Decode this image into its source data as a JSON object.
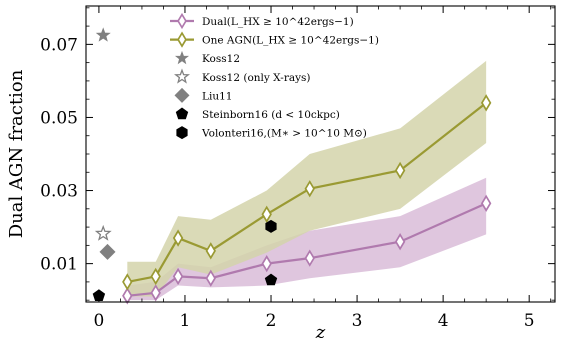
{
  "chart_data": {
    "type": "line",
    "xlabel": "z",
    "ylabel": "Dual AGN fraction",
    "xlim": [
      -0.15,
      5.3
    ],
    "ylim": [
      -0.0005,
      0.0805
    ],
    "xticks": [
      0,
      1,
      2,
      3,
      4,
      5
    ],
    "xtick_labels": [
      "0",
      "1",
      "2",
      "3",
      "4",
      "5"
    ],
    "yticks": [
      0.01,
      0.03,
      0.05,
      0.07
    ],
    "ytick_labels": [
      "0.01",
      "0.03",
      "0.05",
      "0.07"
    ],
    "legend_position": "top-center",
    "series": [
      {
        "name": "Dual(L_HX ≥ 10^42 ergs^-1)",
        "legend_label": "Dual(L_HX ≥ 10^42ergs−1)",
        "kind": "line-band",
        "color": "#b07aae",
        "band_color": "#d9bcd8",
        "x": [
          0.33,
          0.66,
          0.92,
          1.3,
          1.95,
          2.45,
          3.5,
          4.5
        ],
        "y": [
          0.0012,
          0.002,
          0.0065,
          0.006,
          0.01,
          0.0115,
          0.016,
          0.0265
        ],
        "y_low": [
          0.0,
          0.0,
          0.004,
          0.0035,
          0.004,
          0.006,
          0.009,
          0.018
        ],
        "y_high": [
          0.004,
          0.005,
          0.01,
          0.009,
          0.015,
          0.019,
          0.023,
          0.0335
        ]
      },
      {
        "name": "One AGN(L_HX ≥ 10^42 ergs^-1)",
        "legend_label": "One AGN(L_HX ≥ 10^42ergs−1)",
        "kind": "line-band",
        "color": "#9a9a33",
        "band_color": "#d4d3aa",
        "x": [
          0.33,
          0.66,
          0.92,
          1.3,
          1.95,
          2.45,
          3.5,
          4.5
        ],
        "y": [
          0.005,
          0.0065,
          0.017,
          0.0135,
          0.0235,
          0.0305,
          0.0355,
          0.054
        ],
        "y_low": [
          0.001,
          0.001,
          0.009,
          0.007,
          0.013,
          0.019,
          0.025,
          0.043
        ],
        "y_high": [
          0.0105,
          0.0105,
          0.023,
          0.022,
          0.03,
          0.04,
          0.047,
          0.0655
        ]
      },
      {
        "name": "Koss12",
        "legend_label": "Koss12",
        "kind": "marker",
        "marker": "star",
        "color": "#808080",
        "x": [
          0.05
        ],
        "y": [
          0.0725
        ]
      },
      {
        "name": "Koss12 (only X-rays)",
        "legend_label": "Koss12 (only X-rays)",
        "kind": "marker",
        "marker": "star-open",
        "color": "#808080",
        "x": [
          0.05
        ],
        "y": [
          0.0182
        ]
      },
      {
        "name": "Liu11",
        "legend_label": "Liu11",
        "kind": "marker",
        "marker": "diamond",
        "color": "#808080",
        "x": [
          0.1
        ],
        "y": [
          0.0132
        ]
      },
      {
        "name": "Steinborn16 (d < 10ckpc)",
        "legend_label": "Steinborn16 (d < 10ckpc)",
        "kind": "marker",
        "marker": "pentagon",
        "color": "#000000",
        "x": [
          0.0,
          2.0
        ],
        "y": [
          0.0012,
          0.0055
        ]
      },
      {
        "name": "Volonteri16,(M* > 10^10 M⊙)",
        "legend_label": "Volonteri16,(M∗ > 10^10 M⊙)",
        "kind": "marker",
        "marker": "hexagon",
        "color": "#000000",
        "x": [
          2.0
        ],
        "y": [
          0.0202
        ]
      }
    ]
  }
}
